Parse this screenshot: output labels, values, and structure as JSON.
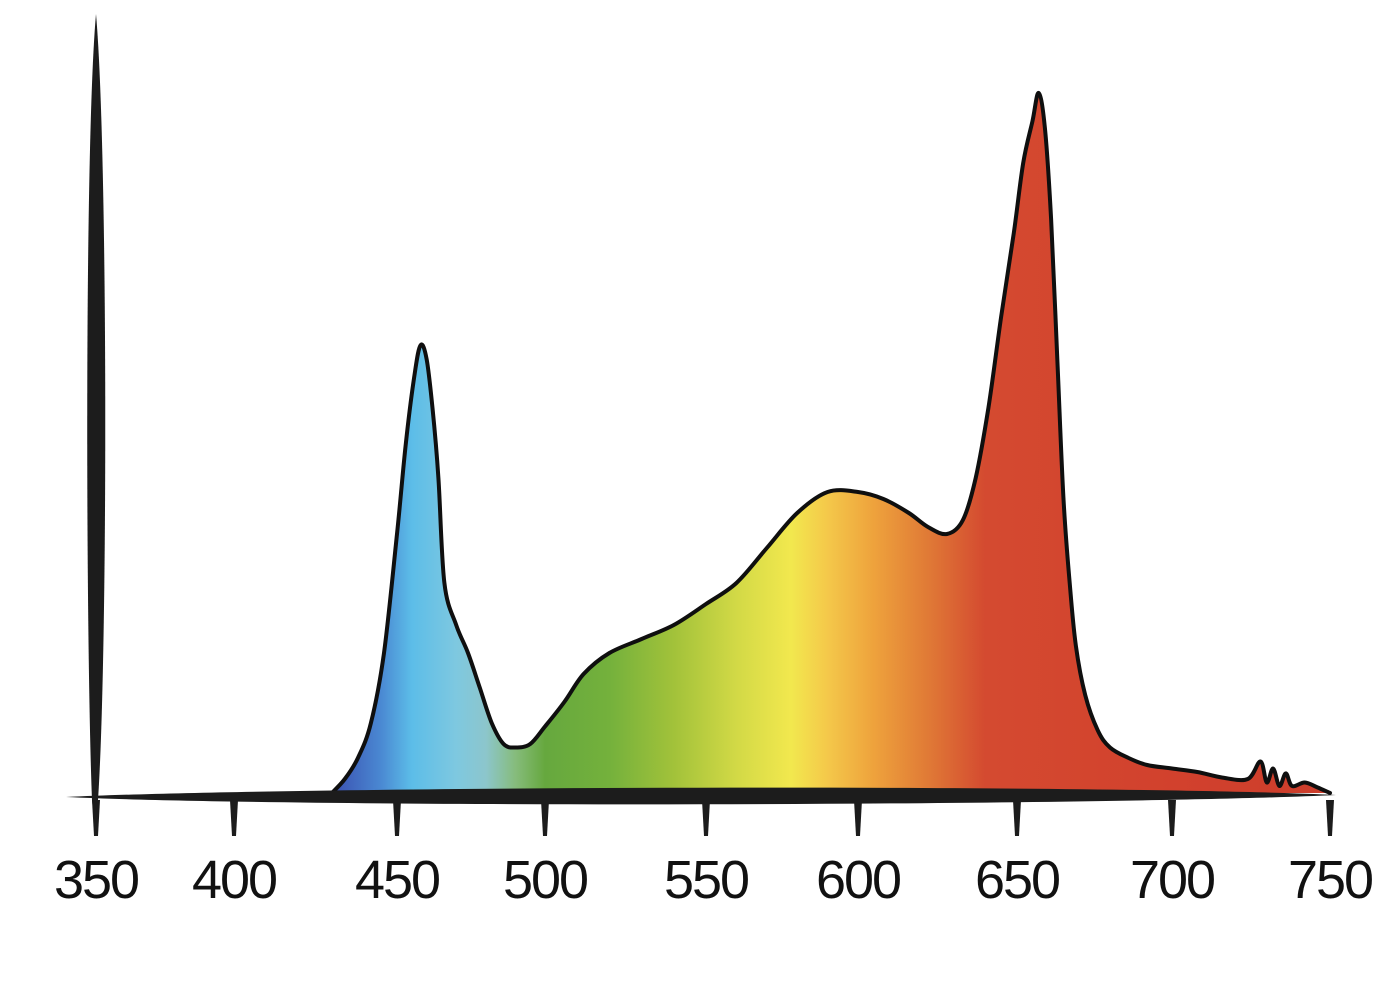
{
  "chart_data": {
    "type": "area",
    "title": "",
    "xlabel": "",
    "ylabel": "",
    "xlim": [
      350,
      752
    ],
    "ylim": [
      0,
      1.0
    ],
    "grid": false,
    "legend": "none",
    "fill": "visible-spectrum-gradient",
    "x_ticks": [
      350,
      400,
      450,
      500,
      550,
      600,
      650,
      700,
      750
    ],
    "x_tick_labels": [
      "350",
      "400",
      "450",
      "500",
      "550",
      "600",
      "650",
      "700",
      "750"
    ],
    "series": [
      {
        "x": [
          430,
          434,
          438,
          442,
          446,
          450,
          453,
          456,
          458,
          460,
          462,
          464,
          466,
          470,
          474,
          478,
          482,
          486,
          490,
          495,
          500,
          506,
          512,
          520,
          530,
          540,
          550,
          560,
          570,
          580,
          590,
          600,
          608,
          616,
          622,
          628,
          633,
          637,
          641,
          645,
          649,
          652,
          655,
          657,
          659,
          661,
          663,
          665,
          667,
          669,
          672,
          676,
          680,
          686,
          692,
          700,
          708,
          716,
          724,
          728,
          730,
          732,
          734,
          736,
          738,
          742,
          746,
          750
        ],
        "values": [
          0.0,
          0.02,
          0.05,
          0.1,
          0.2,
          0.37,
          0.5,
          0.6,
          0.64,
          0.62,
          0.55,
          0.45,
          0.3,
          0.24,
          0.2,
          0.15,
          0.1,
          0.07,
          0.065,
          0.07,
          0.095,
          0.13,
          0.17,
          0.2,
          0.22,
          0.24,
          0.27,
          0.3,
          0.35,
          0.4,
          0.43,
          0.43,
          0.42,
          0.4,
          0.38,
          0.37,
          0.39,
          0.45,
          0.55,
          0.68,
          0.8,
          0.9,
          0.96,
          1.0,
          0.95,
          0.82,
          0.62,
          0.42,
          0.3,
          0.21,
          0.14,
          0.09,
          0.065,
          0.05,
          0.04,
          0.035,
          0.03,
          0.022,
          0.02,
          0.045,
          0.015,
          0.035,
          0.01,
          0.028,
          0.01,
          0.015,
          0.008,
          0.0
        ]
      }
    ],
    "colors": {
      "axis": "#1c1c1c",
      "outline": "#0f0f0f",
      "gradient": [
        [
          430,
          "#3a4fb0"
        ],
        [
          445,
          "#4a88d2"
        ],
        [
          455,
          "#5cbde8"
        ],
        [
          470,
          "#7ec8e0"
        ],
        [
          480,
          "#8cc6cc"
        ],
        [
          490,
          "#86bc7c"
        ],
        [
          500,
          "#66a83e"
        ],
        [
          520,
          "#74b13c"
        ],
        [
          540,
          "#a2c23a"
        ],
        [
          560,
          "#d2d946"
        ],
        [
          578,
          "#f2e84e"
        ],
        [
          590,
          "#f4c84a"
        ],
        [
          605,
          "#eea23c"
        ],
        [
          622,
          "#e07a36"
        ],
        [
          640,
          "#d44a30"
        ],
        [
          700,
          "#d2412d"
        ],
        [
          750,
          "#cc3e2c"
        ]
      ]
    }
  }
}
